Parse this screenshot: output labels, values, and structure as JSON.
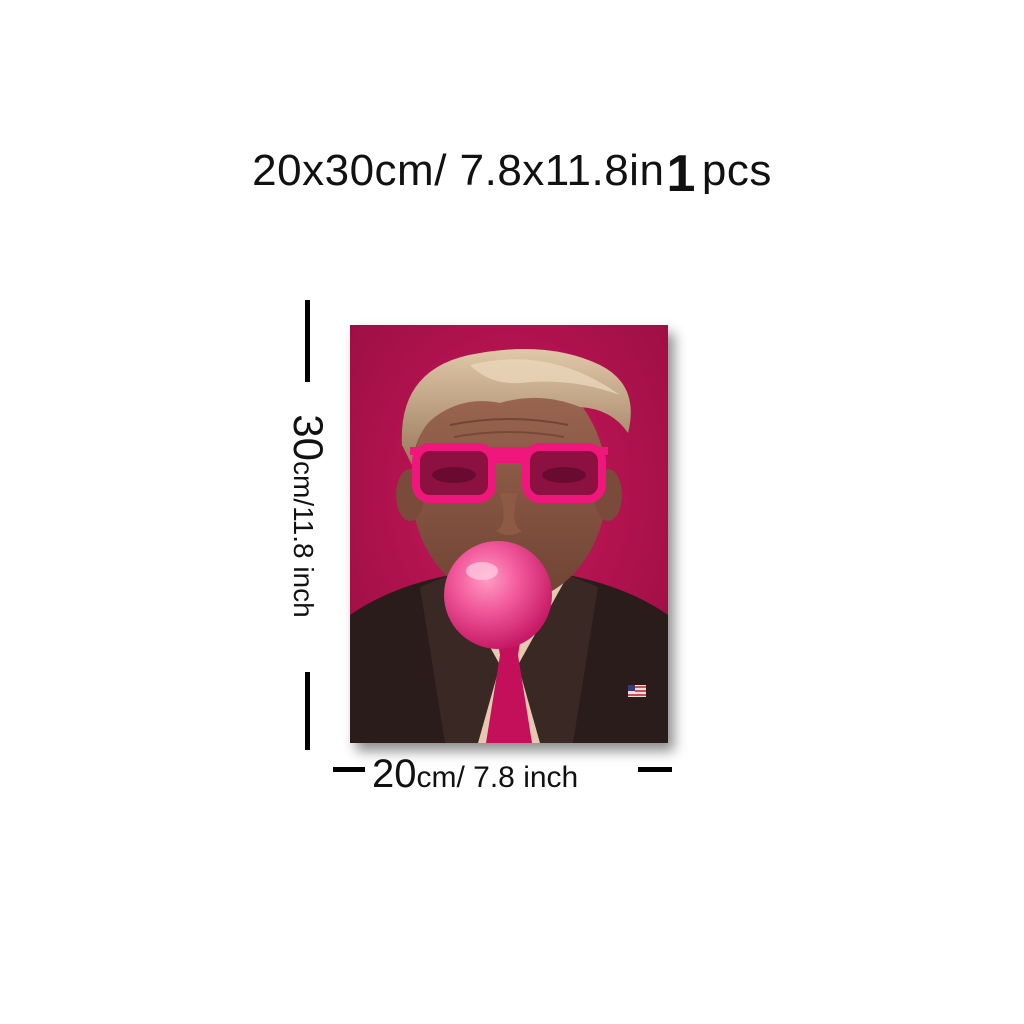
{
  "headline": {
    "size": "20x30cm/ 7.8x11.8in",
    "quantity_number": "1",
    "quantity_unit": "pcs"
  },
  "dimensions": {
    "height_number": "30",
    "height_rest": "cm/11.8 inch",
    "width_number": "20",
    "width_rest": "cm/ 7.8 inch"
  },
  "colors": {
    "poster_background": "#b5124f",
    "glasses": "#f0177c",
    "bubble": "#f25a9c",
    "tie": "#c4105a",
    "suit": "#2a1c1a",
    "shirt": "#e6c9b0",
    "hair": "#c9ad8e",
    "skin": "#8c5a48",
    "dimension_line": "#000000"
  },
  "icons": {
    "lapel_pin": "flag-pin-icon"
  }
}
